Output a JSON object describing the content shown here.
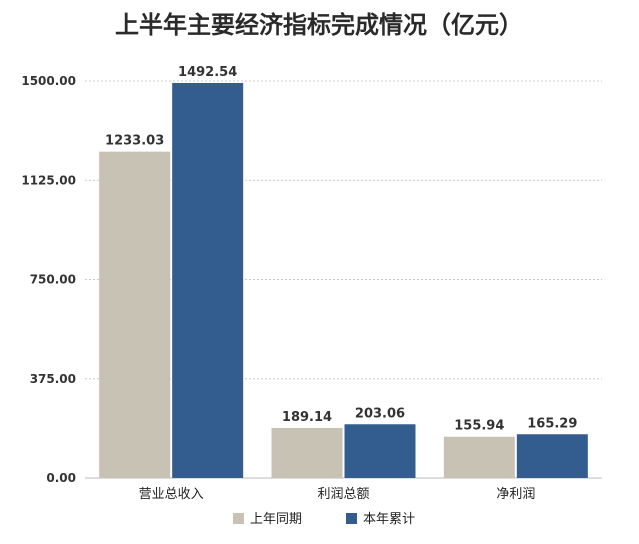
{
  "chart_data": {
    "type": "bar",
    "title": "上半年主要经济指标完成情况（亿元）",
    "categories": [
      "营业总收入",
      "利润总额",
      "净利润"
    ],
    "series": [
      {
        "name": "上年同期",
        "values": [
          1233.03,
          189.14,
          155.94
        ],
        "labels": [
          "1233.03",
          "189.14",
          "155.94"
        ],
        "color": "#c8c2b4"
      },
      {
        "name": "本年累计",
        "values": [
          1492.54,
          203.06,
          165.29
        ],
        "labels": [
          "1492.54",
          "203.06",
          "165.29"
        ],
        "color": "#345d8f"
      }
    ],
    "yticks": [
      "0.00",
      "375.00",
      "750.00",
      "1125.00",
      "1500.00"
    ],
    "ylim": [
      0,
      1500
    ],
    "grid": true,
    "legend_position": "bottom-center"
  }
}
